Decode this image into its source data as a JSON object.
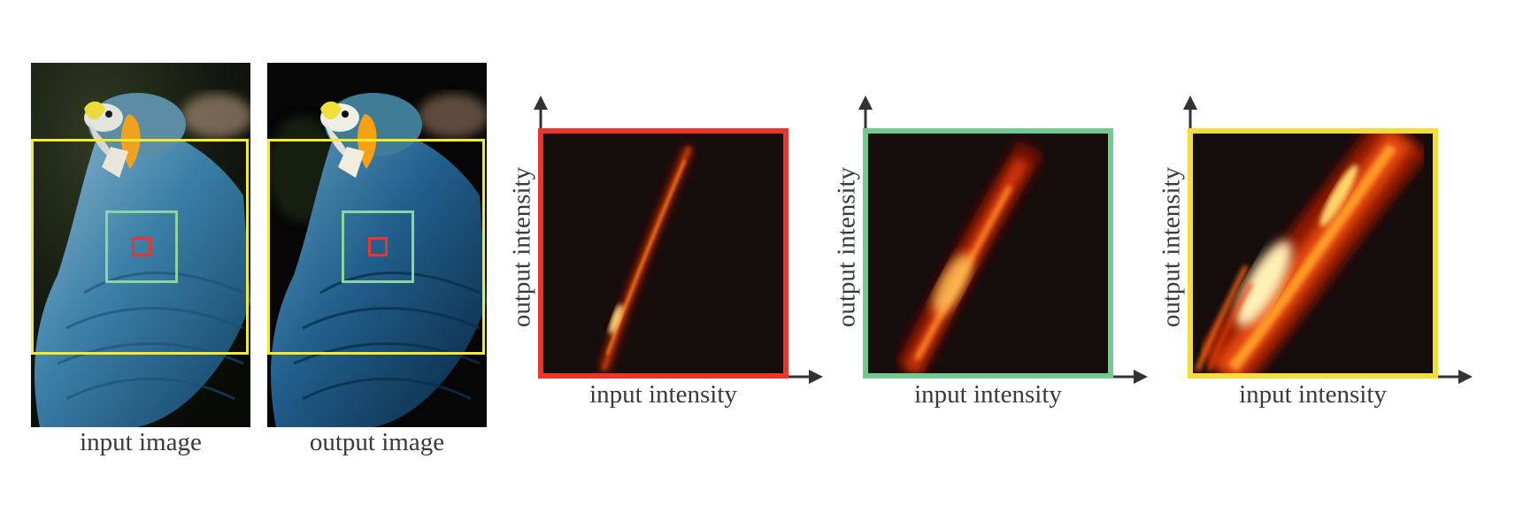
{
  "figure": {
    "panels": [
      {
        "id": "input",
        "caption": "input image"
      },
      {
        "id": "output",
        "caption": "output image"
      }
    ],
    "plots": [
      {
        "id": "red",
        "frame_color": "#e8372a",
        "xlabel": "input intensity",
        "ylabel": "output intensity"
      },
      {
        "id": "green",
        "frame_color": "#74c892",
        "xlabel": "input intensity",
        "ylabel": "output intensity"
      },
      {
        "id": "yellow",
        "frame_color": "#f3dd3c",
        "xlabel": "input intensity",
        "ylabel": "output intensity"
      }
    ],
    "box_colors": {
      "large": "#f4ea2e",
      "medium": "#8fd3a0",
      "small": "#e8372a"
    }
  }
}
